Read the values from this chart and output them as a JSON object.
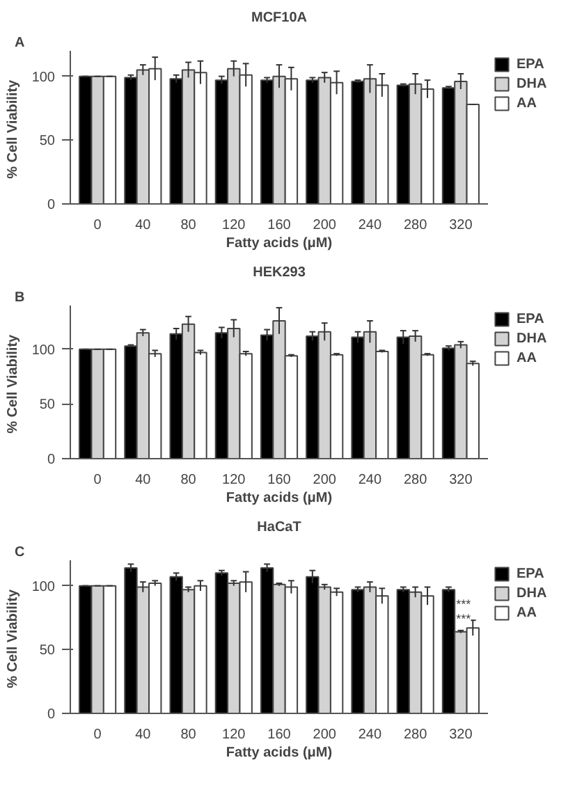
{
  "chart_data": [
    {
      "type": "bar",
      "title": "MCF10A",
      "xlabel": "Fatty acids (μM)",
      "ylabel": "% Cell  Viability",
      "annotations": [
        "A"
      ],
      "categories": [
        "0",
        "40",
        "80",
        "120",
        "160",
        "200",
        "240",
        "280",
        "320"
      ],
      "ylim": [
        0,
        120
      ],
      "yticks": [
        0,
        50,
        100
      ],
      "grid": false,
      "legend": "right",
      "series": [
        {
          "name": "EPA",
          "color": "#000000",
          "values": [
            100,
            99,
            98,
            97,
            97,
            97,
            96,
            93,
            91
          ],
          "errors": [
            0,
            2,
            3,
            3,
            2,
            2,
            1,
            1,
            1
          ]
        },
        {
          "name": "DHA",
          "color": "#d3d3d3",
          "values": [
            100,
            105,
            105,
            106,
            100,
            99,
            98,
            94,
            96
          ],
          "errors": [
            0,
            4,
            6,
            6,
            9,
            4,
            11,
            8,
            6
          ]
        },
        {
          "name": "AA",
          "color": "#ffffff",
          "values": [
            100,
            106,
            103,
            101,
            98,
            95,
            93,
            90,
            78
          ],
          "errors": [
            0,
            9,
            9,
            9,
            9,
            9,
            9,
            7,
            0
          ]
        }
      ]
    },
    {
      "type": "bar",
      "title": "HEK293",
      "xlabel": "Fatty acids (μM)",
      "ylabel": "% Cell  Viability",
      "annotations": [
        "B"
      ],
      "categories": [
        "0",
        "40",
        "80",
        "120",
        "160",
        "200",
        "240",
        "280",
        "320"
      ],
      "ylim": [
        0,
        140
      ],
      "yticks": [
        0,
        50,
        100
      ],
      "grid": false,
      "legend": "right",
      "series": [
        {
          "name": "EPA",
          "color": "#000000",
          "values": [
            100,
            103,
            114,
            115,
            113,
            112,
            111,
            111,
            101
          ],
          "errors": [
            0,
            1,
            5,
            5,
            5,
            4,
            5,
            6,
            2
          ]
        },
        {
          "name": "DHA",
          "color": "#d3d3d3",
          "values": [
            100,
            115,
            123,
            119,
            126,
            116,
            116,
            112,
            104
          ],
          "errors": [
            0,
            3,
            7,
            8,
            12,
            8,
            10,
            5,
            3
          ]
        },
        {
          "name": "AA",
          "color": "#ffffff",
          "values": [
            100,
            96,
            97,
            96,
            94,
            95,
            98,
            95,
            87
          ],
          "errors": [
            0,
            3,
            2,
            2,
            1,
            1,
            1,
            1,
            2
          ]
        }
      ]
    },
    {
      "type": "bar",
      "title": "HaCaT",
      "xlabel": "Fatty acids (μM)",
      "ylabel": "% Cell  Viability",
      "annotations": [
        "C",
        {
          "text": "***",
          "x": "320",
          "y": 69
        },
        {
          "text": "***",
          "x": "320",
          "y": 80
        }
      ],
      "categories": [
        "0",
        "40",
        "80",
        "120",
        "160",
        "200",
        "240",
        "280",
        "320"
      ],
      "ylim": [
        0,
        120
      ],
      "yticks": [
        0,
        50,
        100
      ],
      "grid": false,
      "legend": "right",
      "series": [
        {
          "name": "EPA",
          "color": "#000000",
          "values": [
            100,
            114,
            107,
            110,
            114,
            107,
            97,
            97,
            97
          ],
          "errors": [
            0,
            3,
            3,
            2,
            3,
            5,
            2,
            2,
            2
          ]
        },
        {
          "name": "DHA",
          "color": "#d3d3d3",
          "values": [
            100,
            99,
            97,
            102,
            101,
            99,
            99,
            95,
            64
          ],
          "errors": [
            0,
            4,
            2,
            2,
            1,
            2,
            4,
            4,
            1
          ]
        },
        {
          "name": "AA",
          "color": "#ffffff",
          "values": [
            100,
            102,
            100,
            103,
            99,
            95,
            92,
            92,
            67
          ],
          "errors": [
            0,
            2,
            4,
            8,
            5,
            3,
            6,
            7,
            6
          ]
        }
      ]
    }
  ]
}
